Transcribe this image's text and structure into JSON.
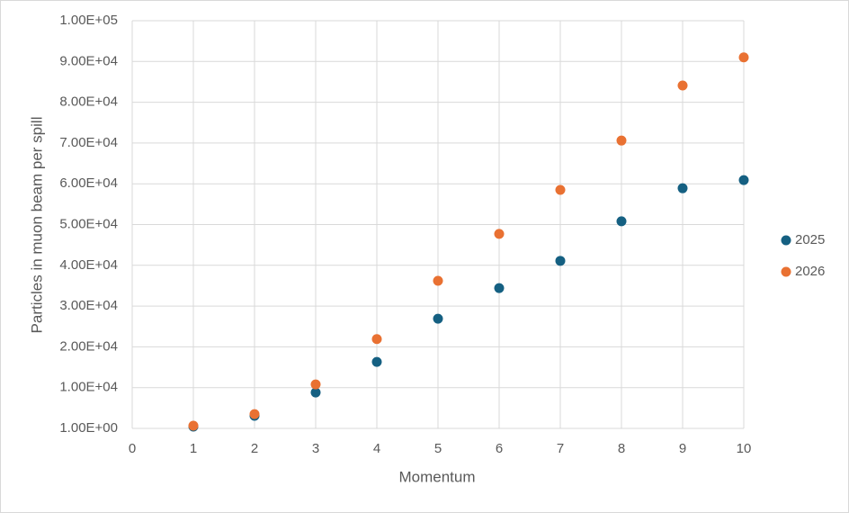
{
  "chart_data": {
    "type": "scatter",
    "x_label": "Momentum",
    "y_label": "Particles in muon beam per spill",
    "xlim": [
      0,
      10
    ],
    "xticks": [
      0,
      1,
      2,
      3,
      4,
      5,
      6,
      7,
      8,
      9,
      10
    ],
    "ylim": [
      1,
      100000
    ],
    "yticks": [
      {
        "value": 1,
        "label": "1.00E+00"
      },
      {
        "value": 10000,
        "label": "1.00E+04"
      },
      {
        "value": 20000,
        "label": "2.00E+04"
      },
      {
        "value": 30000,
        "label": "3.00E+04"
      },
      {
        "value": 40000,
        "label": "4.00E+04"
      },
      {
        "value": 50000,
        "label": "5.00E+04"
      },
      {
        "value": 60000,
        "label": "6.00E+04"
      },
      {
        "value": 70000,
        "label": "7.00E+04"
      },
      {
        "value": 80000,
        "label": "8.00E+04"
      },
      {
        "value": 90000,
        "label": "9.00E+04"
      },
      {
        "value": 100000,
        "label": "1.00E+05"
      }
    ],
    "grid": true,
    "legend": "right",
    "x": [
      1,
      2,
      3,
      4,
      5,
      6,
      7,
      8,
      9,
      10
    ],
    "series": [
      {
        "name": "2025",
        "color": "#156082",
        "values": [
          440,
          3100,
          8800,
          16300,
          26900,
          34400,
          41100,
          50800,
          58900,
          60900
        ]
      },
      {
        "name": "2026",
        "color": "#e97132",
        "values": [
          660,
          3500,
          10800,
          21900,
          36200,
          47700,
          58500,
          70600,
          84100,
          91000
        ]
      }
    ]
  }
}
